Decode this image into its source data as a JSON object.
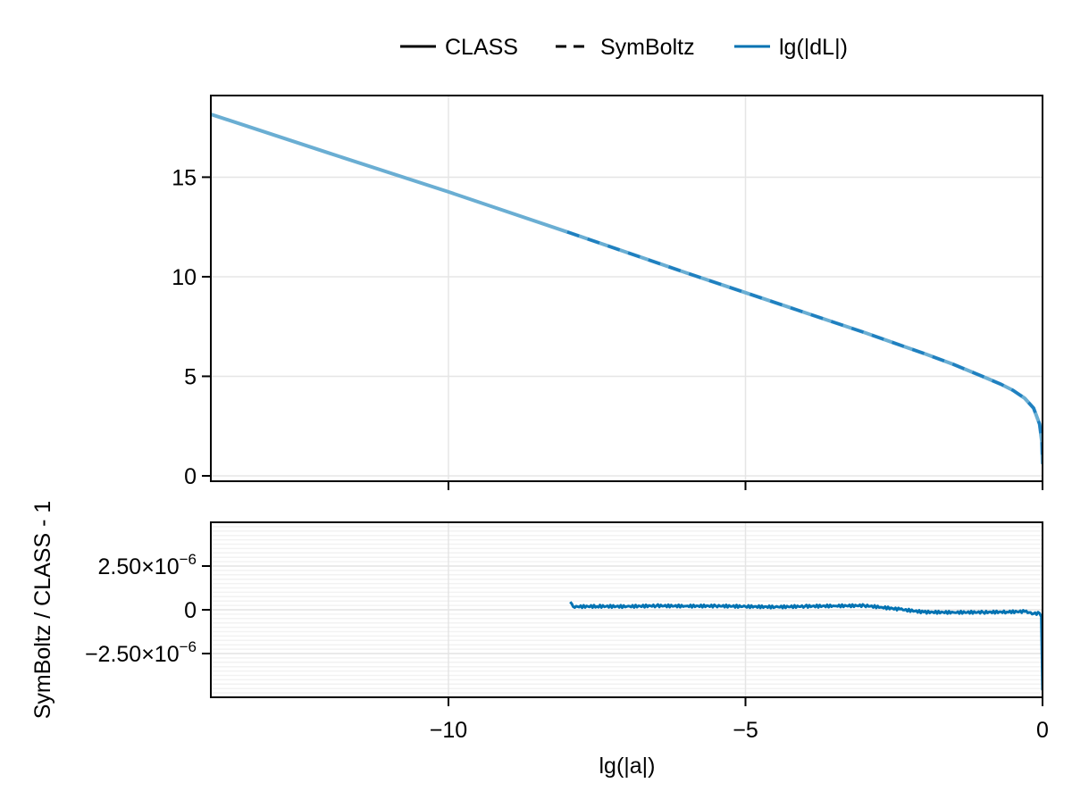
{
  "legend": {
    "items": [
      {
        "label": "CLASS",
        "style": "solid",
        "color": "#000000"
      },
      {
        "label": "SymBoltz",
        "style": "dashed",
        "color": "#000000"
      },
      {
        "label": "lg(|dL|)",
        "style": "solid",
        "color": "#0072b2"
      }
    ]
  },
  "colors": {
    "series_main": "#0072b2",
    "series_light": "#6aaed3",
    "grid": "#e5e5e5",
    "minor_grid": "#f2f2f2",
    "axis": "#000000"
  },
  "chart_data": [
    {
      "type": "line",
      "title": "",
      "xlabel": "",
      "ylabel": "",
      "xlim": [
        -14,
        0
      ],
      "ylim": [
        -0.27,
        19.1
      ],
      "xticks": [
        -10,
        -5,
        0
      ],
      "yticks": [
        0,
        5,
        10,
        15
      ],
      "ytick_labels": [
        "0",
        "5",
        "10",
        "15"
      ],
      "grid": true,
      "legend_position": "top-center (outside)",
      "series": [
        {
          "name": "CLASS",
          "style": "solid",
          "color": "#6aaed3",
          "x": [
            -14,
            -12,
            -10,
            -8,
            -6,
            -5,
            -4,
            -3,
            -2,
            -1.5,
            -1,
            -0.7,
            -0.5,
            -0.3,
            -0.15,
            -0.05,
            -0.01,
            0
          ],
          "y": [
            18.16,
            16.2,
            14.26,
            12.25,
            10.2,
            9.2,
            8.2,
            7.2,
            6.15,
            5.6,
            4.98,
            4.6,
            4.3,
            3.9,
            3.4,
            2.6,
            1.7,
            0.6
          ]
        },
        {
          "name": "SymBoltz",
          "style": "dashed",
          "color": "#1f80c0",
          "x": [
            -8,
            -6,
            -5,
            -4,
            -3,
            -2,
            -1.5,
            -1,
            -0.7,
            -0.5,
            -0.3,
            -0.15,
            -0.05,
            -0.01,
            0
          ],
          "y": [
            12.25,
            10.2,
            9.2,
            8.2,
            7.2,
            6.15,
            5.6,
            4.98,
            4.6,
            4.3,
            3.9,
            3.4,
            2.6,
            1.7,
            0.6
          ]
        }
      ]
    },
    {
      "type": "line",
      "title": "",
      "xlabel": "lg(|a|)",
      "ylabel": "SymBoltz / CLASS - 1",
      "xlim": [
        -14,
        0
      ],
      "ylim": [
        -5e-06,
        5e-06
      ],
      "xticks": [
        -10,
        -5,
        0
      ],
      "xtick_labels": [
        "−10",
        "−5",
        "0"
      ],
      "yticks": [
        -2.5e-06,
        0,
        2.5e-06
      ],
      "ytick_labels": [
        {
          "mantissa": "−2.50×10",
          "exp": "−6"
        },
        {
          "mantissa": "0",
          "exp": ""
        },
        {
          "mantissa": "2.50×10",
          "exp": "−6"
        }
      ],
      "minor_ytick_step": 2.5e-07,
      "grid": true,
      "series": [
        {
          "name": "lg(|dL|)",
          "style": "solid",
          "color": "#0072b2",
          "x": [
            -7.95,
            -7.9,
            -7.5,
            -7.0,
            -6.5,
            -6.0,
            -5.5,
            -5.0,
            -4.5,
            -4.0,
            -3.5,
            -3.0,
            -2.7,
            -2.4,
            -2.0,
            -1.5,
            -1.0,
            -0.6,
            -0.3,
            -0.15,
            -0.05,
            -0.02,
            0
          ],
          "y": [
            4.5e-07,
            1.8e-07,
            2e-07,
            1.9e-07,
            2.3e-07,
            2.1e-07,
            2.2e-07,
            1.9e-07,
            1.6e-07,
            2e-07,
            2.2e-07,
            2.4e-07,
            1.4e-07,
            3e-08,
            -1.3e-07,
            -1.5e-07,
            -1.4e-07,
            -1.2e-07,
            -1e-07,
            -2.2e-07,
            -2e-07,
            -4e-07,
            -4.6e-06
          ]
        }
      ]
    }
  ]
}
